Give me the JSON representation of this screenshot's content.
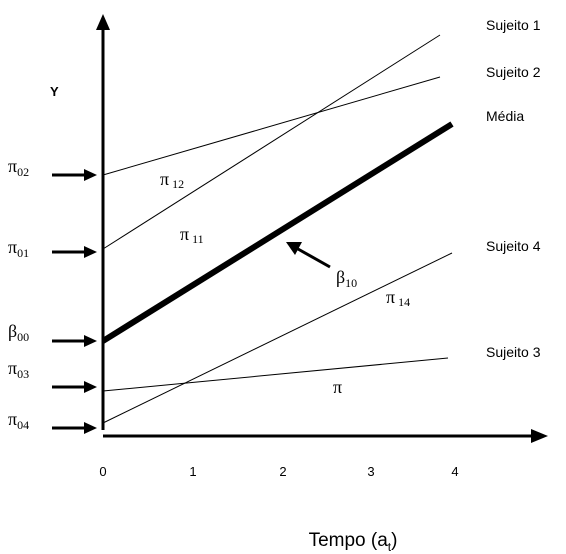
{
  "y_axis": {
    "label": "Y"
  },
  "x_axis": {
    "title_main": "Tempo (a",
    "title_sub": "t",
    "title_close": ")",
    "ticks": [
      "0",
      "1",
      "2",
      "3",
      "4"
    ]
  },
  "left_labels": [
    {
      "base": "π",
      "sub": "02"
    },
    {
      "base": "π",
      "sub": "01"
    },
    {
      "base": "β",
      "sub": "00"
    },
    {
      "base": "π",
      "sub": "03"
    },
    {
      "base": "π",
      "sub": "04"
    }
  ],
  "lines": [
    {
      "name": "Sujeito 1",
      "intercept": 1.8,
      "slope": 0.85
    },
    {
      "name": "Sujeito 2",
      "intercept": 2.8,
      "slope": 0.475
    },
    {
      "name": "Média",
      "intercept": 0.93,
      "slope": 0.725
    },
    {
      "name": "Sujeito 4",
      "intercept": 0.08,
      "slope": 0.5625
    },
    {
      "name": "Sujeito 3",
      "intercept": 0.45,
      "slope": 0.1375
    }
  ],
  "slope_labels": [
    {
      "base": "π",
      "sub": "12"
    },
    {
      "base": "π",
      "sub": "11"
    },
    {
      "base": "β",
      "sub": "10"
    },
    {
      "base": "π",
      "sub": "14"
    },
    {
      "base": "π",
      "sub": ""
    }
  ]
}
